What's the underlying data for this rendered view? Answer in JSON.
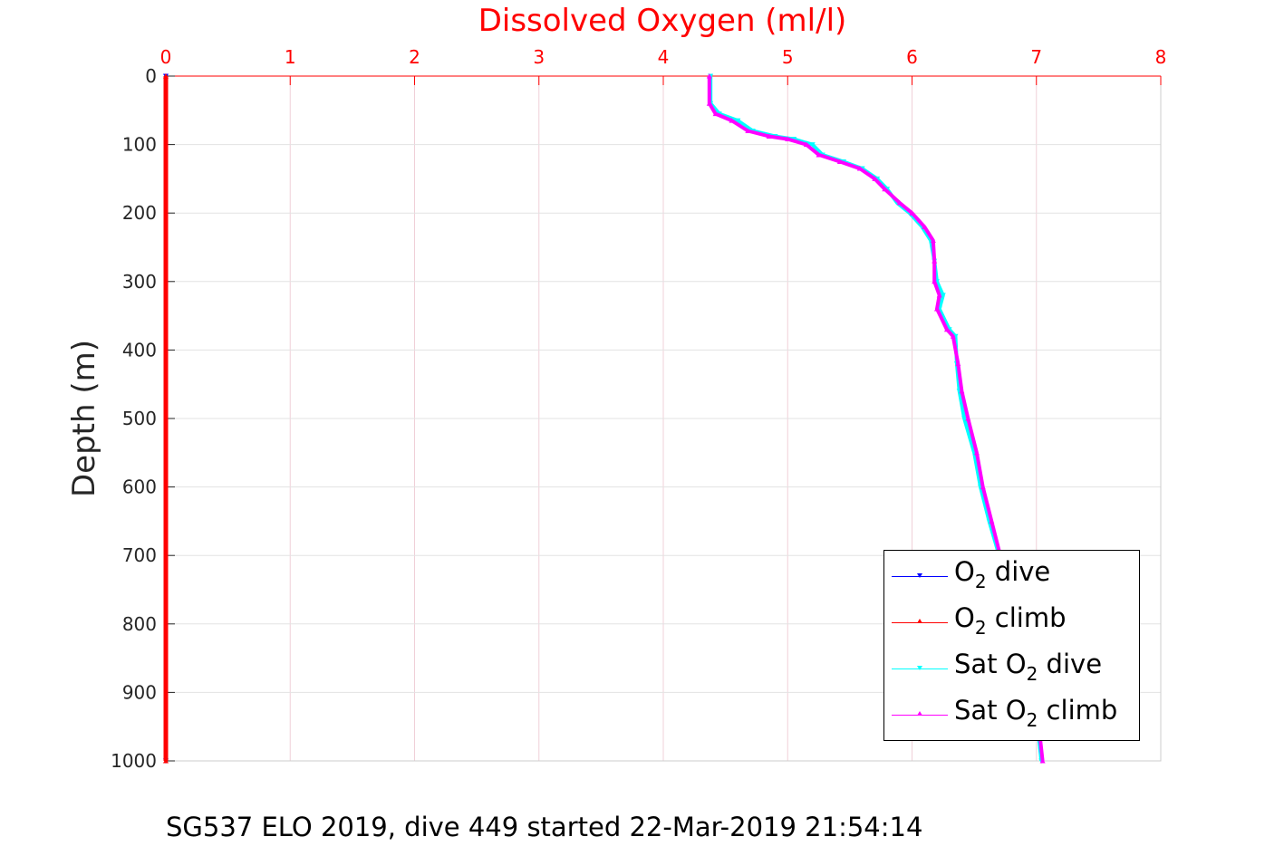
{
  "chart_data": {
    "type": "line",
    "title": "Dissolved Oxygen (ml/l)",
    "xlabel": "Dissolved Oxygen (ml/l)",
    "ylabel": "Depth (m)",
    "xlim": [
      0,
      8
    ],
    "ylim": [
      0,
      1000
    ],
    "y_reversed": true,
    "x_axis_position": "top",
    "x_ticks": [
      0,
      1,
      2,
      3,
      4,
      5,
      6,
      7,
      8
    ],
    "y_ticks": [
      0,
      100,
      200,
      300,
      400,
      500,
      600,
      700,
      800,
      900,
      1000
    ],
    "grid": true,
    "legend_position": "bottom-right",
    "series": [
      {
        "name": "O2 dive",
        "color": "#0000ff",
        "marker": "triangle-down",
        "points": [
          [
            0,
            0
          ],
          [
            0,
            1000
          ]
        ]
      },
      {
        "name": "O2 climb",
        "color": "#ff0000",
        "marker": "triangle-up",
        "points": [
          [
            0,
            0
          ],
          [
            0,
            1000
          ]
        ]
      },
      {
        "name": "Sat O2 dive",
        "color": "#00ffff",
        "marker": "triangle-down",
        "points": [
          [
            4.38,
            0
          ],
          [
            4.38,
            40
          ],
          [
            4.45,
            55
          ],
          [
            4.6,
            65
          ],
          [
            4.72,
            80
          ],
          [
            4.9,
            88
          ],
          [
            5.05,
            92
          ],
          [
            5.2,
            100
          ],
          [
            5.28,
            115
          ],
          [
            5.45,
            125
          ],
          [
            5.6,
            135
          ],
          [
            5.72,
            150
          ],
          [
            5.8,
            165
          ],
          [
            5.88,
            185
          ],
          [
            5.98,
            200
          ],
          [
            6.08,
            220
          ],
          [
            6.15,
            240
          ],
          [
            6.18,
            270
          ],
          [
            6.2,
            300
          ],
          [
            6.25,
            320
          ],
          [
            6.22,
            340
          ],
          [
            6.3,
            370
          ],
          [
            6.35,
            380
          ],
          [
            6.36,
            420
          ],
          [
            6.38,
            460
          ],
          [
            6.42,
            500
          ],
          [
            6.5,
            550
          ],
          [
            6.55,
            600
          ],
          [
            6.62,
            650
          ],
          [
            6.7,
            700
          ],
          [
            6.8,
            750
          ],
          [
            6.88,
            800
          ],
          [
            6.93,
            850
          ],
          [
            6.98,
            900
          ],
          [
            7.01,
            950
          ],
          [
            7.04,
            1000
          ]
        ]
      },
      {
        "name": "Sat O2 climb",
        "color": "#ff00ff",
        "marker": "triangle-up",
        "points": [
          [
            4.37,
            0
          ],
          [
            4.37,
            40
          ],
          [
            4.42,
            55
          ],
          [
            4.55,
            65
          ],
          [
            4.68,
            80
          ],
          [
            4.85,
            88
          ],
          [
            5.0,
            92
          ],
          [
            5.15,
            100
          ],
          [
            5.25,
            115
          ],
          [
            5.42,
            125
          ],
          [
            5.58,
            135
          ],
          [
            5.7,
            150
          ],
          [
            5.78,
            165
          ],
          [
            5.9,
            185
          ],
          [
            6.0,
            200
          ],
          [
            6.1,
            220
          ],
          [
            6.17,
            240
          ],
          [
            6.18,
            270
          ],
          [
            6.18,
            300
          ],
          [
            6.22,
            320
          ],
          [
            6.2,
            340
          ],
          [
            6.28,
            370
          ],
          [
            6.33,
            380
          ],
          [
            6.37,
            420
          ],
          [
            6.4,
            460
          ],
          [
            6.45,
            500
          ],
          [
            6.52,
            550
          ],
          [
            6.57,
            600
          ],
          [
            6.64,
            650
          ],
          [
            6.71,
            700
          ],
          [
            6.8,
            750
          ],
          [
            6.88,
            800
          ],
          [
            6.93,
            850
          ],
          [
            6.98,
            900
          ],
          [
            7.02,
            950
          ],
          [
            7.05,
            1000
          ]
        ]
      }
    ]
  },
  "legend": {
    "items": [
      {
        "prefix": "O",
        "sub": "2",
        "suffix": " dive",
        "color": "#0000ff",
        "marker": "down"
      },
      {
        "prefix": "O",
        "sub": "2",
        "suffix": " climb",
        "color": "#ff0000",
        "marker": "up"
      },
      {
        "prefix": "Sat O",
        "sub": "2",
        "suffix": " dive",
        "color": "#00ffff",
        "marker": "down"
      },
      {
        "prefix": "Sat O",
        "sub": "2",
        "suffix": " climb",
        "color": "#ff00ff",
        "marker": "up"
      }
    ]
  },
  "caption": "SG537 ELO 2019, dive 449 started 22-Mar-2019 21:54:14",
  "colors": {
    "axis_top": "#ff0000",
    "grid": "#e6e6e6",
    "title": "#ff0000"
  }
}
